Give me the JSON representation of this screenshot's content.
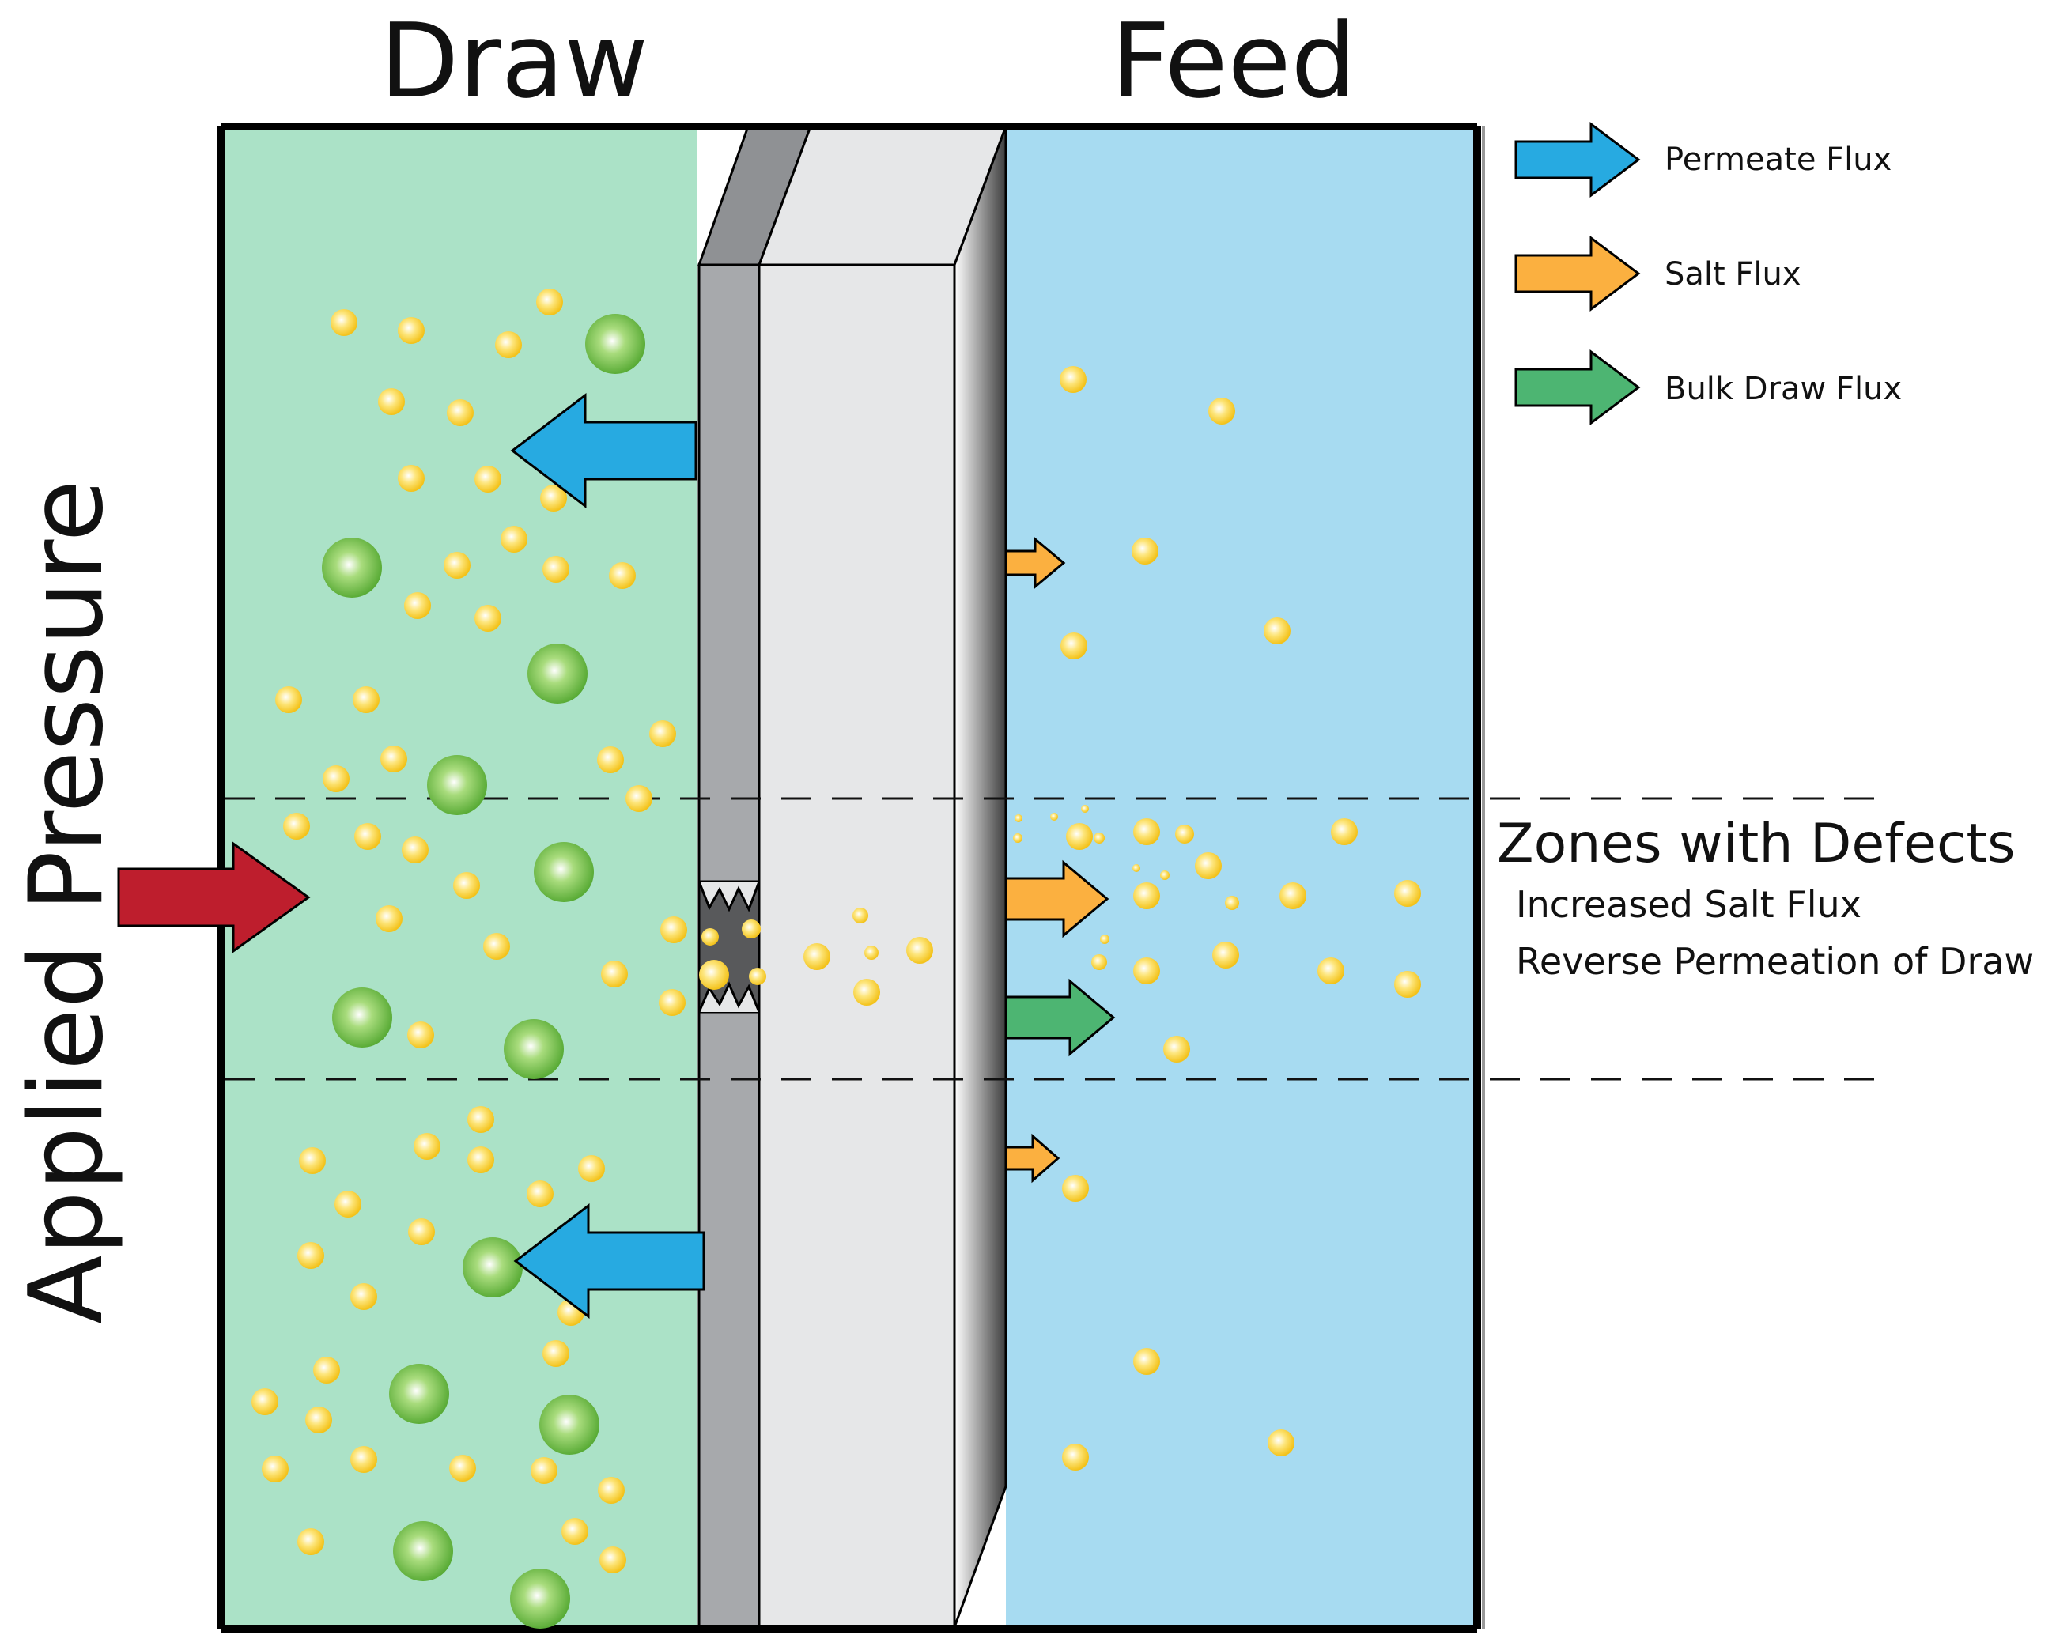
{
  "labels": {
    "draw": "Draw",
    "feed": "Feed",
    "applied_pressure": "Applied Pressure"
  },
  "legend": [
    {
      "label": "Permeate Flux",
      "color": "#27aae1"
    },
    {
      "label": "Salt Flux",
      "color": "#fbb040"
    },
    {
      "label": "Bulk Draw Flux",
      "color": "#4db572"
    }
  ],
  "annotation": {
    "title": "Zones with Defects",
    "lines": [
      "Increased Salt Flux",
      "Reverse Permeation of Draw"
    ]
  },
  "colors": {
    "draw_fluid": "#abe2c7",
    "feed_fluid": "#a7dbf1",
    "pressure_arrow": "#be1e2d",
    "membrane_active_layer": "#a7a9ac",
    "membrane_support": "#e6e7e8",
    "salt_particle": "#f6d32b",
    "draw_solute": "#6cbf3f"
  }
}
